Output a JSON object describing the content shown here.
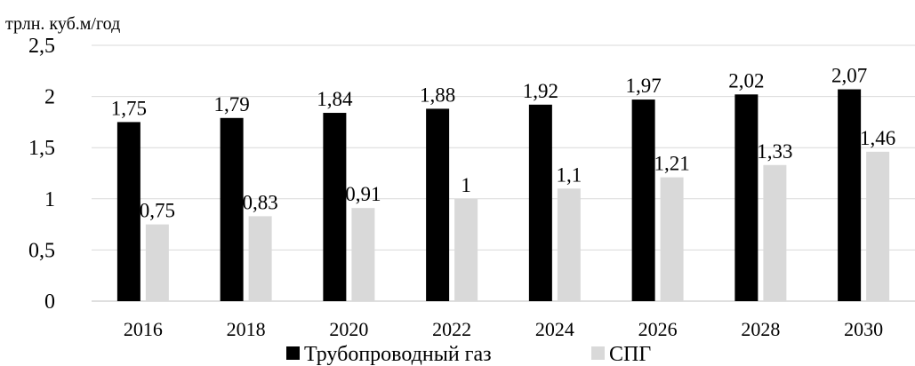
{
  "chart_data": {
    "type": "bar",
    "unit_label": "трлн. куб.м/год",
    "categories": [
      "2016",
      "2018",
      "2020",
      "2022",
      "2024",
      "2026",
      "2028",
      "2030"
    ],
    "series": [
      {
        "name": "Трубопроводный газ",
        "color": "#000000",
        "values": [
          1.75,
          1.79,
          1.84,
          1.88,
          1.92,
          1.97,
          2.02,
          2.07
        ],
        "labels": [
          "1,75",
          "1,79",
          "1,84",
          "1,88",
          "1,92",
          "1,97",
          "2,02",
          "2,07"
        ]
      },
      {
        "name": "СПГ",
        "color": "#d9d9d9",
        "values": [
          0.75,
          0.83,
          0.91,
          1.0,
          1.1,
          1.21,
          1.33,
          1.46
        ],
        "labels": [
          "0,75",
          "0,83",
          "0,91",
          "1",
          "1,1",
          "1,21",
          "1,33",
          "1,46"
        ]
      }
    ],
    "yticks": [
      "0",
      "0,5",
      "1",
      "1,5",
      "2",
      "2,5"
    ],
    "ylim": [
      0,
      2.5
    ],
    "grid": true,
    "legend_position": "bottom"
  }
}
